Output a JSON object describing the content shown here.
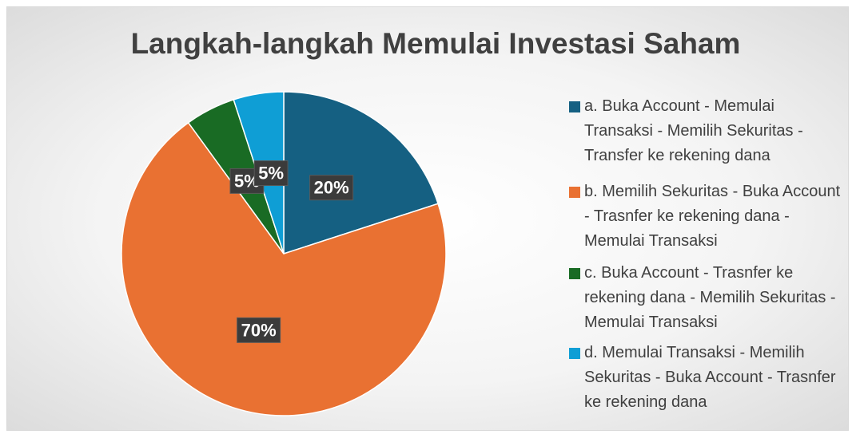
{
  "chart_data": {
    "type": "pie",
    "title": "Langkah-langkah Memulai Investasi Saham",
    "categories": [
      "a. Buka Account - Memulai Transaksi - Memilih Sekuritas - Transfer ke rekening dana",
      "b. Memilih Sekuritas - Buka Account - Trasnfer ke rekening dana - Memulai Transaksi",
      "c. Buka Account - Trasnfer ke rekening dana - Memilih Sekuritas - Memulai Transaksi",
      "d. Memulai Transaksi - Memilih Sekuritas - Buka Account - Trasnfer ke rekening dana"
    ],
    "values": [
      20,
      70,
      5,
      5
    ],
    "value_labels": [
      "20%",
      "70%",
      "5%",
      "5%"
    ],
    "colors": [
      "#156082",
      "#e97132",
      "#196b24",
      "#0f9ed5"
    ],
    "legend": "right"
  }
}
